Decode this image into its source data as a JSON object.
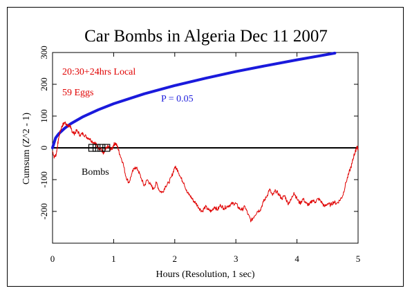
{
  "chart_data": {
    "type": "line",
    "title": "Car Bombs in Algeria Dec 11 2007",
    "xlabel": "Hours (Resolution, 1 sec)",
    "ylabel": "Cumsum (Z^2 - 1)",
    "xlim": [
      0,
      5
    ],
    "ylim": [
      -300,
      300
    ],
    "x_ticks": [
      "0",
      "1",
      "2",
      "3",
      "4",
      "5"
    ],
    "y_ticks": [
      "-200",
      "-100",
      "0",
      "100",
      "200",
      "300"
    ],
    "annotations": {
      "time_window": "20:30+24hrs Local",
      "eggs": "59 Eggs",
      "probability_label": "P = 0.05",
      "event_label": "Bombs"
    },
    "colors": {
      "data": "#e00000",
      "probability": "#1a1adc",
      "axis": "#000000"
    },
    "event_markers_x": [
      0.65,
      0.72,
      0.8,
      0.88
    ],
    "probability_envelope": {
      "x": [
        0,
        0.05,
        0.1,
        0.2,
        0.3,
        0.5,
        0.75,
        1.0,
        1.5,
        2.0,
        2.5,
        3.0,
        3.5,
        4.0,
        4.5,
        4.62
      ],
      "y": [
        0,
        31,
        44,
        62,
        76,
        98,
        120,
        139,
        170,
        196,
        219,
        240,
        259,
        277,
        294,
        298
      ]
    },
    "series": [
      {
        "values_x": [
          0,
          0.03,
          0.06,
          0.08,
          0.1,
          0.13,
          0.16,
          0.2,
          0.23,
          0.26,
          0.28,
          0.3,
          0.33,
          0.36,
          0.4,
          0.45,
          0.5,
          0.55,
          0.6,
          0.65,
          0.7,
          0.73,
          0.76,
          0.8,
          0.83,
          0.86,
          0.9,
          0.93,
          0.97,
          1.0,
          1.03,
          1.07,
          1.1,
          1.15,
          1.2,
          1.25,
          1.3,
          1.35,
          1.4,
          1.45,
          1.5,
          1.55,
          1.6,
          1.65,
          1.7,
          1.75,
          1.8,
          1.85,
          1.9,
          1.95,
          2.0,
          2.05,
          2.1,
          2.15,
          2.2,
          2.25,
          2.3,
          2.35,
          2.4,
          2.45,
          2.5,
          2.55,
          2.6,
          2.65,
          2.7,
          2.75,
          2.8,
          2.85,
          2.9,
          2.95,
          3.0,
          3.05,
          3.1,
          3.15,
          3.2,
          3.25,
          3.3,
          3.35,
          3.4,
          3.45,
          3.5,
          3.55,
          3.6,
          3.65,
          3.7,
          3.75,
          3.8,
          3.85,
          3.9,
          3.95,
          4.0,
          4.05,
          4.1,
          4.15,
          4.2,
          4.25,
          4.3,
          4.35,
          4.4,
          4.45,
          4.5,
          4.55,
          4.6,
          4.65,
          4.7,
          4.75,
          4.8,
          4.85,
          4.9,
          4.93,
          4.96,
          4.98,
          5.0
        ],
        "values_y": [
          -10,
          -30,
          -20,
          5,
          30,
          55,
          70,
          80,
          75,
          65,
          72,
          60,
          50,
          45,
          55,
          40,
          45,
          35,
          30,
          20,
          15,
          5,
          0,
          -5,
          -20,
          -10,
          5,
          0,
          -5,
          10,
          15,
          0,
          -20,
          -45,
          -90,
          -110,
          -80,
          -60,
          -70,
          -95,
          -120,
          -100,
          -115,
          -130,
          -110,
          -135,
          -140,
          -120,
          -110,
          -90,
          -60,
          -70,
          -95,
          -110,
          -140,
          -150,
          -165,
          -175,
          -190,
          -200,
          -185,
          -195,
          -200,
          -185,
          -195,
          -180,
          -190,
          -185,
          -180,
          -175,
          -175,
          -190,
          -195,
          -185,
          -210,
          -230,
          -215,
          -200,
          -195,
          -170,
          -155,
          -130,
          -150,
          -135,
          -145,
          -160,
          -150,
          -175,
          -165,
          -140,
          -160,
          -175,
          -160,
          -175,
          -180,
          -165,
          -170,
          -160,
          -170,
          -185,
          -175,
          -180,
          -170,
          -175,
          -165,
          -150,
          -110,
          -80,
          -50,
          -25,
          -10,
          5,
          -5
        ]
      }
    ]
  }
}
